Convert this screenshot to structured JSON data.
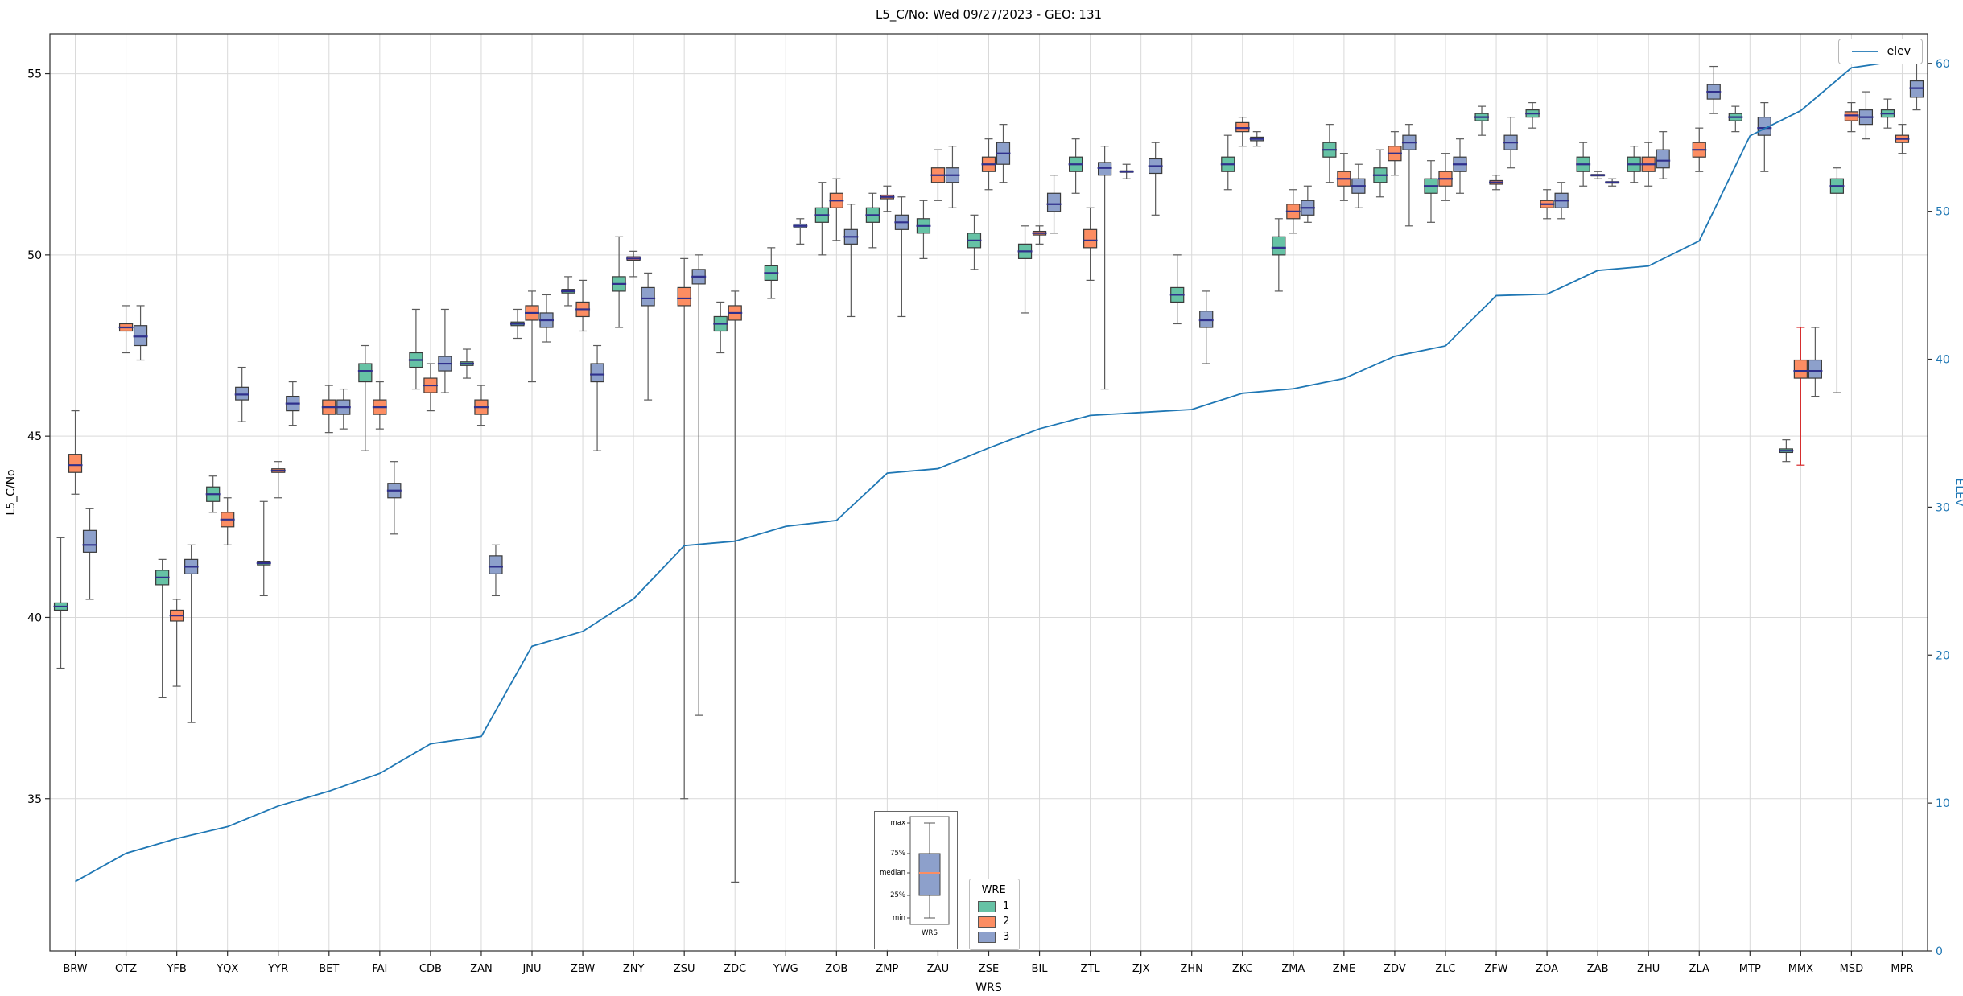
{
  "legends": {
    "wre_title": "WRE",
    "wre_items": [
      "1",
      "2",
      "3"
    ],
    "elev": "elev"
  },
  "inset": {
    "max": "max",
    "p75": "75%",
    "median": "median",
    "p25": "25%",
    "min": "min",
    "xlabel": "WRS"
  },
  "chart_data": {
    "type": "boxplot+line",
    "title": "L5_C/No: Wed 09/27/2023 - GEO: 131",
    "xlabel": "WRS",
    "ylabel": "L5_C/No",
    "y2label": "ELEV",
    "ylim": [
      30.8,
      56.1
    ],
    "y2lim": [
      0,
      62
    ],
    "yticks": [
      35,
      40,
      45,
      50,
      55
    ],
    "y2ticks": [
      0,
      10,
      20,
      30,
      40,
      50,
      60
    ],
    "grid": true,
    "legend_position": "lower-center and upper-right",
    "categories": [
      "BRW",
      "OTZ",
      "YFB",
      "YQX",
      "YYR",
      "BET",
      "FAI",
      "CDB",
      "ZAN",
      "JNU",
      "ZBW",
      "ZNY",
      "ZSU",
      "ZDC",
      "YWG",
      "ZOB",
      "ZMP",
      "ZAU",
      "ZSE",
      "BIL",
      "ZTL",
      "ZJX",
      "ZHN",
      "ZKC",
      "ZMA",
      "ZME",
      "ZDV",
      "ZLC",
      "ZFW",
      "ZOA",
      "ZAB",
      "ZHU",
      "ZLA",
      "MTP",
      "MMX",
      "MSD",
      "MPR"
    ],
    "series_colors": {
      "1": "#66c2a5",
      "2": "#fc8d62",
      "3": "#8da0cb"
    },
    "style": {
      "grid": "#d9d9d9",
      "spine": "#2b2b2b",
      "box_edge": "#3a3a3a",
      "whisker": "#5a5a5a",
      "median": "#30308c",
      "axis2": "#1f77b4"
    },
    "boxes_format": [
      "category",
      "wre",
      "whisker_low",
      "q1",
      "median",
      "q3",
      "whisker_high",
      "optional_whisker_color"
    ],
    "boxes": [
      [
        "BRW",
        "1",
        38.6,
        40.2,
        40.3,
        40.4,
        42.2
      ],
      [
        "BRW",
        "2",
        43.4,
        44.0,
        44.2,
        44.5,
        45.7
      ],
      [
        "BRW",
        "3",
        40.5,
        41.8,
        42.0,
        42.4,
        43.0
      ],
      [
        "OTZ",
        "2",
        47.3,
        47.9,
        48.0,
        48.1,
        48.6
      ],
      [
        "OTZ",
        "3",
        47.1,
        47.5,
        47.75,
        48.05,
        48.6
      ],
      [
        "YFB",
        "1",
        37.8,
        40.9,
        41.1,
        41.3,
        41.6
      ],
      [
        "YFB",
        "2",
        38.1,
        39.9,
        40.05,
        40.2,
        40.5
      ],
      [
        "YFB",
        "3",
        37.1,
        41.2,
        41.4,
        41.6,
        42.0
      ],
      [
        "YQX",
        "1",
        42.9,
        43.2,
        43.4,
        43.6,
        43.9
      ],
      [
        "YQX",
        "2",
        42.0,
        42.5,
        42.7,
        42.9,
        43.3
      ],
      [
        "YQX",
        "3",
        45.4,
        46.0,
        46.15,
        46.35,
        46.9
      ],
      [
        "YYR",
        "1",
        40.6,
        41.45,
        41.5,
        41.55,
        43.2
      ],
      [
        "YYR",
        "2",
        43.3,
        44.0,
        44.05,
        44.1,
        44.3
      ],
      [
        "YYR",
        "3",
        45.3,
        45.7,
        45.9,
        46.1,
        46.5
      ],
      [
        "BET",
        "2",
        45.1,
        45.6,
        45.8,
        46.0,
        46.4
      ],
      [
        "BET",
        "3",
        45.2,
        45.6,
        45.8,
        46.0,
        46.3
      ],
      [
        "FAI",
        "1",
        44.6,
        46.5,
        46.8,
        47.0,
        47.5
      ],
      [
        "FAI",
        "2",
        45.2,
        45.6,
        45.8,
        46.0,
        46.5
      ],
      [
        "FAI",
        "3",
        42.3,
        43.3,
        43.5,
        43.7,
        44.3
      ],
      [
        "CDB",
        "1",
        46.3,
        46.9,
        47.1,
        47.3,
        48.5
      ],
      [
        "CDB",
        "2",
        45.7,
        46.2,
        46.4,
        46.6,
        47.0
      ],
      [
        "CDB",
        "3",
        46.2,
        46.8,
        47.0,
        47.2,
        48.5
      ],
      [
        "ZAN",
        "1",
        46.6,
        46.95,
        47.0,
        47.05,
        47.4
      ],
      [
        "ZAN",
        "2",
        45.3,
        45.6,
        45.8,
        46.0,
        46.4
      ],
      [
        "ZAN",
        "3",
        40.6,
        41.2,
        41.4,
        41.7,
        42.0
      ],
      [
        "JNU",
        "1",
        47.7,
        48.05,
        48.1,
        48.15,
        48.5
      ],
      [
        "JNU",
        "2",
        46.5,
        48.2,
        48.4,
        48.6,
        49.0
      ],
      [
        "JNU",
        "3",
        47.6,
        48.0,
        48.2,
        48.4,
        48.9
      ],
      [
        "ZBW",
        "1",
        48.6,
        48.95,
        49.0,
        49.05,
        49.4
      ],
      [
        "ZBW",
        "2",
        47.9,
        48.3,
        48.5,
        48.7,
        49.3
      ],
      [
        "ZBW",
        "3",
        44.6,
        46.5,
        46.7,
        47.0,
        47.5
      ],
      [
        "ZNY",
        "1",
        48.0,
        49.0,
        49.2,
        49.4,
        50.5
      ],
      [
        "ZNY",
        "2",
        49.4,
        49.85,
        49.9,
        49.95,
        50.1
      ],
      [
        "ZNY",
        "3",
        46.0,
        48.6,
        48.8,
        49.1,
        49.5
      ],
      [
        "ZSU",
        "2",
        35.0,
        48.6,
        48.8,
        49.1,
        49.9
      ],
      [
        "ZSU",
        "3",
        37.3,
        49.2,
        49.4,
        49.6,
        50.0
      ],
      [
        "ZDC",
        "1",
        47.3,
        47.9,
        48.1,
        48.3,
        48.7
      ],
      [
        "ZDC",
        "2",
        32.7,
        48.2,
        48.4,
        48.6,
        49.0
      ],
      [
        "YWG",
        "1",
        48.8,
        49.3,
        49.5,
        49.7,
        50.2
      ],
      [
        "YWG",
        "3",
        50.3,
        50.75,
        50.8,
        50.85,
        51.0
      ],
      [
        "ZOB",
        "1",
        50.0,
        50.9,
        51.1,
        51.3,
        52.0
      ],
      [
        "ZOB",
        "2",
        50.4,
        51.3,
        51.5,
        51.7,
        52.1
      ],
      [
        "ZOB",
        "3",
        48.3,
        50.3,
        50.5,
        50.7,
        51.4
      ],
      [
        "ZMP",
        "1",
        50.2,
        50.9,
        51.1,
        51.3,
        51.7
      ],
      [
        "ZMP",
        "2",
        51.2,
        51.55,
        51.6,
        51.65,
        51.9
      ],
      [
        "ZMP",
        "3",
        48.3,
        50.7,
        50.9,
        51.1,
        51.6
      ],
      [
        "ZAU",
        "1",
        49.9,
        50.6,
        50.8,
        51.0,
        51.5
      ],
      [
        "ZAU",
        "2",
        51.5,
        52.0,
        52.2,
        52.4,
        52.9
      ],
      [
        "ZAU",
        "3",
        51.3,
        52.0,
        52.2,
        52.4,
        53.0
      ],
      [
        "ZSE",
        "1",
        49.6,
        50.2,
        50.4,
        50.6,
        51.1
      ],
      [
        "ZSE",
        "2",
        51.8,
        52.3,
        52.5,
        52.7,
        53.2
      ],
      [
        "ZSE",
        "3",
        52.0,
        52.5,
        52.8,
        53.1,
        53.6
      ],
      [
        "BIL",
        "1",
        48.4,
        49.9,
        50.1,
        50.3,
        50.8
      ],
      [
        "BIL",
        "2",
        50.3,
        50.55,
        50.6,
        50.65,
        50.8
      ],
      [
        "BIL",
        "3",
        50.6,
        51.2,
        51.4,
        51.7,
        52.2
      ],
      [
        "ZTL",
        "1",
        51.7,
        52.3,
        52.5,
        52.7,
        53.2
      ],
      [
        "ZTL",
        "2",
        49.3,
        50.2,
        50.4,
        50.7,
        51.3
      ],
      [
        "ZTL",
        "3",
        46.3,
        52.2,
        52.4,
        52.55,
        53.0
      ],
      [
        "ZJX",
        "1",
        52.1,
        52.28,
        52.3,
        52.32,
        52.5
      ],
      [
        "ZJX",
        "3",
        51.1,
        52.25,
        52.45,
        52.65,
        53.1
      ],
      [
        "ZHN",
        "1",
        48.1,
        48.7,
        48.9,
        49.1,
        50.0
      ],
      [
        "ZHN",
        "3",
        47.0,
        48.0,
        48.2,
        48.45,
        49.0
      ],
      [
        "ZKC",
        "1",
        51.8,
        52.3,
        52.5,
        52.7,
        53.3
      ],
      [
        "ZKC",
        "2",
        53.0,
        53.4,
        53.5,
        53.65,
        53.8
      ],
      [
        "ZKC",
        "3",
        53.0,
        53.15,
        53.2,
        53.25,
        53.4
      ],
      [
        "ZMA",
        "1",
        49.0,
        50.0,
        50.2,
        50.5,
        51.0
      ],
      [
        "ZMA",
        "2",
        50.6,
        51.0,
        51.2,
        51.4,
        51.8
      ],
      [
        "ZMA",
        "3",
        50.9,
        51.1,
        51.3,
        51.5,
        51.9
      ],
      [
        "ZME",
        "1",
        52.0,
        52.7,
        52.9,
        53.1,
        53.6
      ],
      [
        "ZME",
        "2",
        51.5,
        51.9,
        52.1,
        52.3,
        52.8
      ],
      [
        "ZME",
        "3",
        51.3,
        51.7,
        51.9,
        52.1,
        52.5
      ],
      [
        "ZDV",
        "1",
        51.6,
        52.0,
        52.2,
        52.4,
        52.9
      ],
      [
        "ZDV",
        "2",
        52.2,
        52.6,
        52.8,
        53.0,
        53.4
      ],
      [
        "ZDV",
        "3",
        50.8,
        52.9,
        53.1,
        53.3,
        53.6
      ],
      [
        "ZLC",
        "1",
        50.9,
        51.7,
        51.9,
        52.1,
        52.6
      ],
      [
        "ZLC",
        "2",
        51.5,
        51.9,
        52.1,
        52.3,
        52.8
      ],
      [
        "ZLC",
        "3",
        51.7,
        52.3,
        52.5,
        52.7,
        53.2
      ],
      [
        "ZFW",
        "1",
        53.3,
        53.7,
        53.8,
        53.9,
        54.1
      ],
      [
        "ZFW",
        "2",
        51.8,
        51.95,
        52.0,
        52.05,
        52.2
      ],
      [
        "ZFW",
        "3",
        52.4,
        52.9,
        53.1,
        53.3,
        53.8
      ],
      [
        "ZOA",
        "1",
        53.5,
        53.8,
        53.9,
        54.0,
        54.2
      ],
      [
        "ZOA",
        "2",
        51.0,
        51.3,
        51.4,
        51.5,
        51.8
      ],
      [
        "ZOA",
        "3",
        51.0,
        51.3,
        51.5,
        51.7,
        52.0
      ],
      [
        "ZAB",
        "1",
        51.9,
        52.3,
        52.5,
        52.7,
        53.1
      ],
      [
        "ZAB",
        "2",
        52.1,
        52.18,
        52.2,
        52.22,
        52.3
      ],
      [
        "ZAB",
        "3",
        51.9,
        51.98,
        52.0,
        52.02,
        52.1
      ],
      [
        "ZHU",
        "1",
        52.0,
        52.3,
        52.5,
        52.7,
        53.0
      ],
      [
        "ZHU",
        "2",
        51.9,
        52.3,
        52.5,
        52.7,
        53.1
      ],
      [
        "ZHU",
        "3",
        52.1,
        52.4,
        52.6,
        52.9,
        53.4
      ],
      [
        "ZLA",
        "2",
        52.3,
        52.7,
        52.9,
        53.1,
        53.5
      ],
      [
        "ZLA",
        "3",
        53.9,
        54.3,
        54.5,
        54.7,
        55.2
      ],
      [
        "MTP",
        "1",
        53.4,
        53.7,
        53.8,
        53.9,
        54.1
      ],
      [
        "MTP",
        "3",
        52.3,
        53.3,
        53.5,
        53.8,
        54.2
      ],
      [
        "MMX",
        "1",
        44.3,
        44.55,
        44.6,
        44.65,
        44.9
      ],
      [
        "MMX",
        "2",
        44.2,
        46.6,
        46.8,
        47.1,
        48.0,
        "#d62728"
      ],
      [
        "MMX",
        "3",
        46.1,
        46.6,
        46.8,
        47.1,
        48.0
      ],
      [
        "MSD",
        "1",
        46.2,
        51.7,
        51.9,
        52.1,
        52.4
      ],
      [
        "MSD",
        "2",
        53.4,
        53.7,
        53.85,
        53.95,
        54.2
      ],
      [
        "MSD",
        "3",
        53.2,
        53.6,
        53.8,
        54.0,
        54.5
      ],
      [
        "MPR",
        "1",
        53.5,
        53.8,
        53.9,
        54.0,
        54.3
      ],
      [
        "MPR",
        "2",
        52.8,
        53.1,
        53.2,
        53.3,
        53.6
      ],
      [
        "MPR",
        "3",
        54.0,
        54.35,
        54.6,
        54.8,
        55.3
      ]
    ],
    "elev": {
      "name": "elev",
      "color": "#1f77b4",
      "values": [
        4.7,
        6.6,
        7.6,
        8.4,
        9.8,
        10.8,
        12.0,
        14.0,
        14.5,
        20.6,
        21.6,
        23.8,
        27.4,
        27.7,
        28.7,
        29.1,
        32.3,
        32.6,
        34.0,
        35.3,
        36.2,
        36.4,
        36.6,
        37.7,
        38.0,
        38.7,
        40.2,
        40.9,
        44.3,
        44.4,
        46.0,
        46.3,
        48.0,
        55.1,
        56.8,
        59.7,
        60.2
      ]
    }
  }
}
